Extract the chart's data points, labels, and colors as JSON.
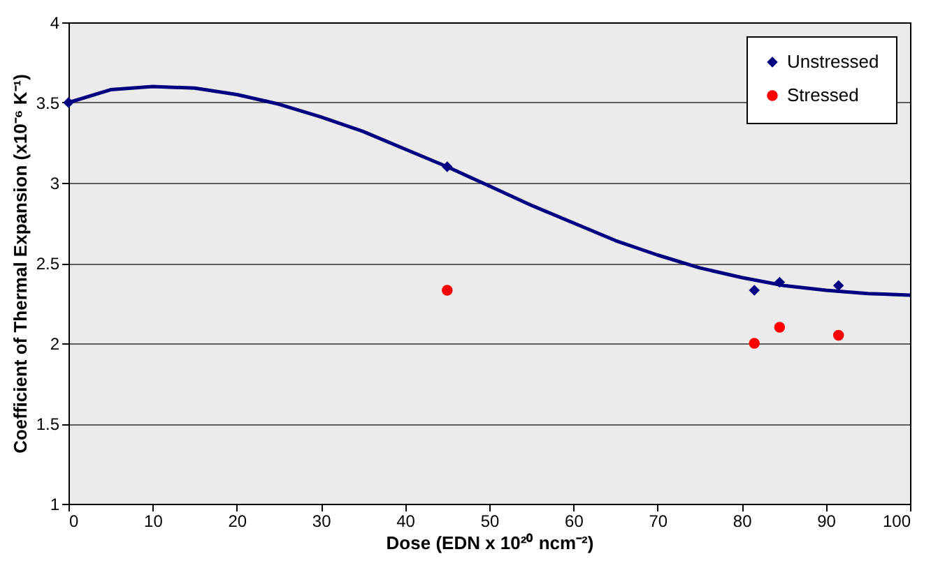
{
  "chart_data": {
    "type": "scatter",
    "xlabel": "Dose (EDN x 10²⁰ ncm⁻²)",
    "ylabel": "Coefficient of Thermal Expansion (x10⁻⁶ K⁻¹)",
    "xlim": [
      0,
      100
    ],
    "xticks": [
      0,
      10,
      20,
      30,
      40,
      50,
      60,
      70,
      80,
      90,
      100
    ],
    "ylim": [
      1,
      4
    ],
    "yticks": [
      1,
      1.5,
      2,
      2.5,
      3,
      3.5,
      4
    ],
    "grid": "y",
    "legend": "top right",
    "series": [
      {
        "type": "line",
        "color": "#000080",
        "marker": "none",
        "x": [
          0,
          5,
          10,
          15,
          20,
          25,
          30,
          35,
          40,
          45,
          50,
          55,
          60,
          65,
          70,
          75,
          80,
          85,
          90,
          95,
          100
        ],
        "values": [
          3.5,
          3.58,
          3.6,
          3.59,
          3.55,
          3.49,
          3.41,
          3.32,
          3.21,
          3.1,
          2.98,
          2.86,
          2.75,
          2.64,
          2.55,
          2.47,
          2.41,
          2.36,
          2.33,
          2.31,
          2.3
        ]
      },
      {
        "name": "Unstressed",
        "color": "#000080",
        "marker": "diamond",
        "x": [
          0,
          45,
          81.5,
          84.5,
          91.5
        ],
        "values": [
          3.5,
          3.1,
          2.33,
          2.38,
          2.36
        ]
      },
      {
        "name": "Stressed",
        "color": "#ff0000",
        "marker": "circle",
        "x": [
          45,
          81.5,
          84.5,
          91.5
        ],
        "values": [
          2.33,
          2,
          2.1,
          2.05
        ]
      }
    ]
  }
}
